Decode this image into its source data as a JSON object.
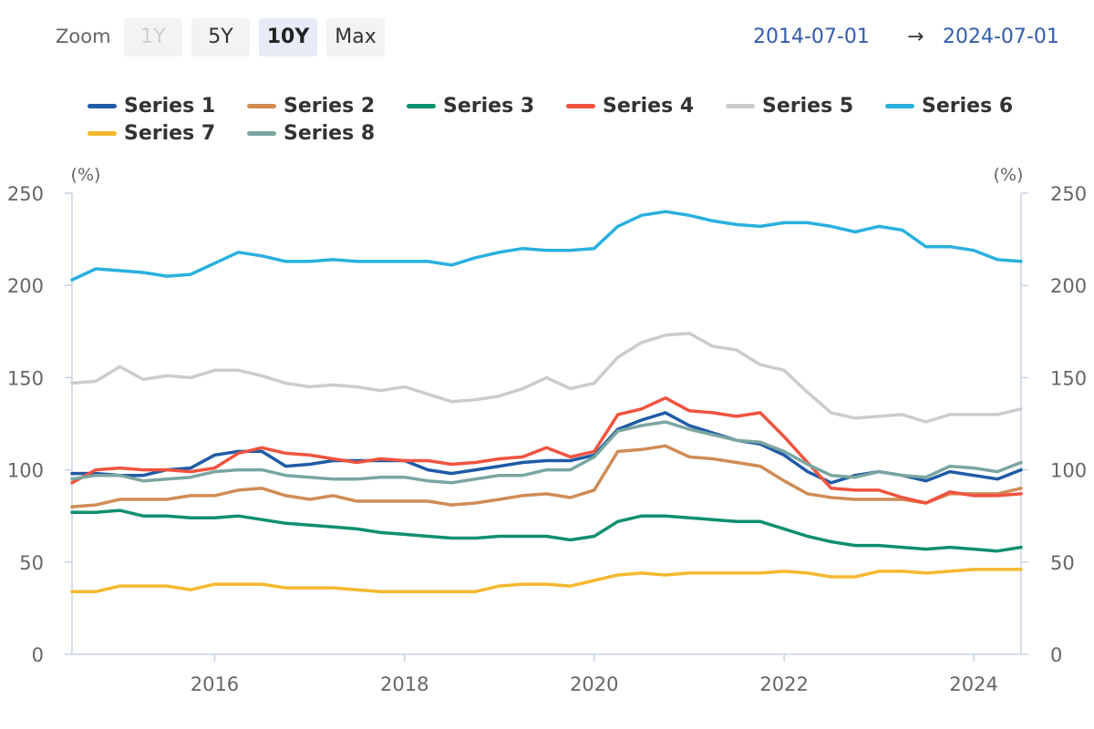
{
  "toolbar": {
    "zoom_label": "Zoom",
    "buttons": [
      {
        "label": "1Y",
        "state": "disabled"
      },
      {
        "label": "5Y",
        "state": "normal"
      },
      {
        "label": "10Y",
        "state": "active"
      },
      {
        "label": "Max",
        "state": "normal"
      }
    ],
    "range_from": "2014-07-01",
    "range_arrow": "→",
    "range_to": "2024-07-01"
  },
  "chart_data": {
    "type": "line",
    "y_unit_left": "(%)",
    "y_unit_right": "(%)",
    "ylim": [
      0,
      250
    ],
    "yticks": [
      "0",
      "50",
      "100",
      "150",
      "200",
      "250"
    ],
    "xlim": [
      "2014-07-01",
      "2024-07-01"
    ],
    "xticks": [
      "2016",
      "2018",
      "2020",
      "2022",
      "2024"
    ],
    "grid": false,
    "legend_position": "top",
    "x": [
      "2014-07",
      "2014-10",
      "2015-01",
      "2015-04",
      "2015-07",
      "2015-10",
      "2016-01",
      "2016-04",
      "2016-07",
      "2016-10",
      "2017-01",
      "2017-04",
      "2017-07",
      "2017-10",
      "2018-01",
      "2018-04",
      "2018-07",
      "2018-10",
      "2019-01",
      "2019-04",
      "2019-07",
      "2019-10",
      "2020-01",
      "2020-04",
      "2020-07",
      "2020-10",
      "2021-01",
      "2021-04",
      "2021-07",
      "2021-10",
      "2022-01",
      "2022-04",
      "2022-07",
      "2022-10",
      "2023-01",
      "2023-04",
      "2023-07",
      "2023-10",
      "2024-01",
      "2024-04",
      "2024-07"
    ],
    "series": [
      {
        "name": "Series 1",
        "color": "#1f5ba6",
        "values": [
          98,
          98,
          97,
          97,
          100,
          101,
          108,
          110,
          110,
          102,
          103,
          105,
          105,
          105,
          105,
          100,
          98,
          100,
          102,
          104,
          105,
          105,
          108,
          122,
          127,
          131,
          124,
          120,
          116,
          114,
          108,
          99,
          93,
          97,
          99,
          97,
          94,
          99,
          97,
          95,
          100
        ]
      },
      {
        "name": "Series 2",
        "color": "#d08c55",
        "values": [
          80,
          81,
          84,
          84,
          84,
          86,
          86,
          89,
          90,
          86,
          84,
          86,
          83,
          83,
          83,
          83,
          81,
          82,
          84,
          86,
          87,
          85,
          89,
          110,
          111,
          113,
          107,
          106,
          104,
          102,
          94,
          87,
          85,
          84,
          84,
          84,
          82,
          87,
          87,
          87,
          90
        ]
      },
      {
        "name": "Series 3",
        "color": "#0e8f6e",
        "values": [
          77,
          77,
          78,
          75,
          75,
          74,
          74,
          75,
          73,
          71,
          70,
          69,
          68,
          66,
          65,
          64,
          63,
          63,
          64,
          64,
          64,
          62,
          64,
          72,
          75,
          75,
          74,
          73,
          72,
          72,
          68,
          64,
          61,
          59,
          59,
          58,
          57,
          58,
          57,
          56,
          58
        ]
      },
      {
        "name": "Series 4",
        "color": "#f0533f",
        "values": [
          93,
          100,
          101,
          100,
          100,
          99,
          101,
          109,
          112,
          109,
          108,
          106,
          104,
          106,
          105,
          105,
          103,
          104,
          106,
          107,
          112,
          107,
          110,
          130,
          133,
          139,
          132,
          131,
          129,
          131,
          118,
          104,
          90,
          89,
          89,
          85,
          82,
          88,
          86,
          86,
          87
        ]
      },
      {
        "name": "Series 5",
        "color": "#cccccc",
        "values": [
          147,
          148,
          156,
          149,
          151,
          150,
          154,
          154,
          151,
          147,
          145,
          146,
          145,
          143,
          145,
          141,
          137,
          138,
          140,
          144,
          150,
          144,
          147,
          161,
          169,
          173,
          174,
          167,
          165,
          157,
          154,
          142,
          131,
          128,
          129,
          130,
          126,
          130,
          130,
          130,
          133
        ]
      },
      {
        "name": "Series 6",
        "color": "#29b0de",
        "values": [
          203,
          209,
          208,
          207,
          205,
          206,
          212,
          218,
          216,
          213,
          213,
          214,
          213,
          213,
          213,
          213,
          211,
          215,
          218,
          220,
          219,
          219,
          220,
          232,
          238,
          240,
          238,
          235,
          233,
          232,
          234,
          234,
          232,
          229,
          232,
          230,
          221,
          221,
          219,
          214,
          213
        ]
      },
      {
        "name": "Series 7",
        "color": "#f5b82e",
        "values": [
          34,
          34,
          37,
          37,
          37,
          35,
          38,
          38,
          38,
          36,
          36,
          36,
          35,
          34,
          34,
          34,
          34,
          34,
          37,
          38,
          38,
          37,
          40,
          43,
          44,
          43,
          44,
          44,
          44,
          44,
          45,
          44,
          42,
          42,
          45,
          45,
          44,
          45,
          46,
          46,
          46
        ]
      },
      {
        "name": "Series 8",
        "color": "#7aa6a0",
        "values": [
          95,
          97,
          97,
          94,
          95,
          96,
          99,
          100,
          100,
          97,
          96,
          95,
          95,
          96,
          96,
          94,
          93,
          95,
          97,
          97,
          100,
          100,
          107,
          121,
          124,
          126,
          122,
          119,
          116,
          115,
          110,
          103,
          97,
          96,
          99,
          97,
          96,
          102,
          101,
          99,
          104
        ]
      }
    ]
  }
}
